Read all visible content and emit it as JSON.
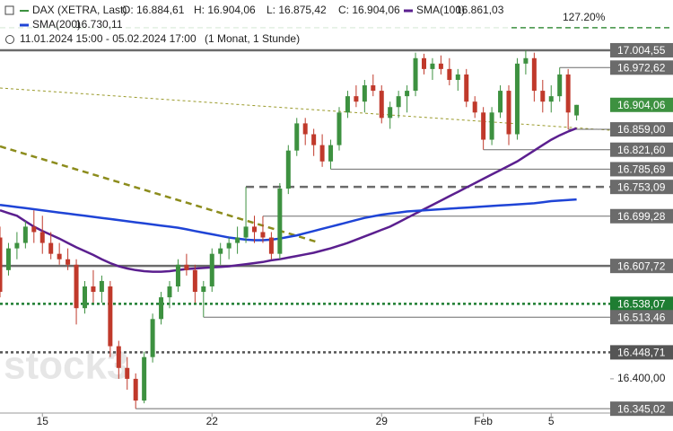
{
  "chart_data": {
    "type": "candlestick",
    "watermark": "stock3",
    "ylim": [
      16304,
      17097
    ],
    "yticks": [
      {
        "value": 16400,
        "label": "16.400,00"
      }
    ],
    "categories": [
      null,
      null,
      null,
      null,
      null,
      "15",
      null,
      null,
      null,
      null,
      null,
      null,
      null,
      null,
      null,
      null,
      null,
      null,
      null,
      null,
      null,
      null,
      null,
      null,
      null,
      "22",
      null,
      null,
      null,
      null,
      null,
      null,
      null,
      null,
      null,
      null,
      null,
      null,
      null,
      null,
      null,
      null,
      null,
      null,
      null,
      "29",
      null,
      null,
      null,
      null,
      null,
      null,
      null,
      null,
      null,
      null,
      null,
      "Feb",
      null,
      null,
      null,
      null,
      null,
      null,
      null,
      "5",
      null,
      null,
      null
    ],
    "series": [
      {
        "name": "DAX (XETRA, Last)",
        "up_color": "#3d9140",
        "down_color": "#c0392b",
        "legend_values": [
          "O: 16.884,61",
          "H: 16.904,06",
          "L: 16.875,42",
          "C: 16.904,06"
        ],
        "values": [
          [
            16660,
            16680,
            16550,
            16560
          ],
          [
            16600,
            16650,
            16590,
            16640
          ],
          [
            16640,
            16670,
            16620,
            16650
          ],
          [
            16650,
            16690,
            16640,
            16680
          ],
          [
            16680,
            16710,
            16650,
            16670
          ],
          [
            16670,
            16700,
            16630,
            16650
          ],
          [
            16650,
            16670,
            16620,
            16630
          ],
          [
            16630,
            16650,
            16610,
            16620
          ],
          [
            16620,
            16640,
            16600,
            16610
          ],
          [
            16610,
            16620,
            16500,
            16530
          ],
          [
            16530,
            16580,
            16520,
            16570
          ],
          [
            16570,
            16600,
            16540,
            16560
          ],
          [
            16560,
            16590,
            16540,
            16580
          ],
          [
            16570,
            16580,
            16440,
            16460
          ],
          [
            16460,
            16470,
            16400,
            16420
          ],
          [
            16420,
            16440,
            16380,
            16400
          ],
          [
            16400,
            16410,
            16345.02,
            16360
          ],
          [
            16360,
            16450,
            16355,
            16440
          ],
          [
            16440,
            16520,
            16430,
            16510
          ],
          [
            16510,
            16560,
            16500,
            16550
          ],
          [
            16550,
            16580,
            16530,
            16570
          ],
          [
            16570,
            16620,
            16560,
            16610
          ],
          [
            16610,
            16630,
            16590,
            16600
          ],
          [
            16600,
            16610,
            16540,
            16560
          ],
          [
            16560,
            16580,
            16513.46,
            16570
          ],
          [
            16570,
            16640,
            16560,
            16630
          ],
          [
            16630,
            16650,
            16610,
            16640
          ],
          [
            16640,
            16660,
            16620,
            16650
          ],
          [
            16650,
            16680,
            16630,
            16660
          ],
          [
            16660,
            16753.09,
            16650,
            16680
          ],
          [
            16680,
            16700,
            16650,
            16670
          ],
          [
            16670,
            16699.28,
            16650,
            16660
          ],
          [
            16660,
            16670,
            16620,
            16630
          ],
          [
            16630,
            16760,
            16620,
            16750
          ],
          [
            16750,
            16830,
            16740,
            16820
          ],
          [
            16820,
            16880,
            16810,
            16870
          ],
          [
            16870,
            16880,
            16830,
            16850
          ],
          [
            16850,
            16860,
            16810,
            16830
          ],
          [
            16830,
            16850,
            16790,
            16800
          ],
          [
            16800,
            16840,
            16785.69,
            16830
          ],
          [
            16830,
            16900,
            16820,
            16890
          ],
          [
            16890,
            16930,
            16880,
            16920
          ],
          [
            16920,
            16940,
            16900,
            16910
          ],
          [
            16910,
            16950,
            16890,
            16940
          ],
          [
            16940,
            16960,
            16920,
            16930
          ],
          [
            16930,
            16940,
            16870,
            16880
          ],
          [
            16880,
            16910,
            16860,
            16900
          ],
          [
            16900,
            16930,
            16880,
            16920
          ],
          [
            16920,
            16940,
            16890,
            16930
          ],
          [
            16930,
            17000,
            16920,
            16990
          ],
          [
            16990,
            16998,
            16960,
            16970
          ],
          [
            16970,
            16990,
            16950,
            16980
          ],
          [
            16980,
            16995,
            16960,
            16970
          ],
          [
            16970,
            16990,
            16940,
            16950
          ],
          [
            16950,
            16970,
            16930,
            16960
          ],
          [
            16960,
            16970,
            16900,
            16910
          ],
          [
            16910,
            16920,
            16880,
            16890
          ],
          [
            16890,
            16900,
            16821.6,
            16840
          ],
          [
            16840,
            16900,
            16830,
            16890
          ],
          [
            16890,
            16940,
            16880,
            16930
          ],
          [
            16930,
            16940,
            16830,
            16850
          ],
          [
            16850,
            16990,
            16840,
            16980
          ],
          [
            16980,
            17004.55,
            16960,
            16990
          ],
          [
            16990,
            17000,
            16910,
            16930
          ],
          [
            16930,
            16950,
            16890,
            16910
          ],
          [
            16910,
            16940,
            16890,
            16920
          ],
          [
            16920,
            16972.62,
            16910,
            16960
          ],
          [
            16960,
            16970,
            16859,
            16890
          ],
          [
            16884.61,
            16904.06,
            16875.42,
            16904.06
          ]
        ]
      }
    ],
    "overlays": [
      {
        "name": "SMA(100)",
        "color": "#5b1f8f",
        "value_label": "16.861,03",
        "values": [
          16710,
          16705,
          16700,
          16690,
          16680,
          16672,
          16665,
          16658,
          16650,
          16642,
          16635,
          16628,
          16620,
          16613,
          16607,
          16603,
          16600,
          16598,
          16597,
          16597,
          16598,
          16600,
          16602,
          16603,
          16604,
          16605,
          16606,
          16607,
          16609,
          16611,
          16613,
          16615,
          16618,
          16620,
          16623,
          16626,
          16629,
          16632,
          16636,
          16640,
          16645,
          16650,
          16656,
          16662,
          16668,
          16674,
          16680,
          16688,
          16696,
          16704,
          16712,
          16720,
          16728,
          16736,
          16744,
          16752,
          16760,
          16768,
          16776,
          16784,
          16792,
          16800,
          16810,
          16820,
          16830,
          16840,
          16848,
          16855,
          16861.03
        ]
      },
      {
        "name": "SMA(200)",
        "color": "#1f44d6",
        "value_label": "16.730,11",
        "values": [
          16720,
          16718,
          16716,
          16714,
          16712,
          16710,
          16708,
          16706,
          16704,
          16702,
          16700,
          16698,
          16696,
          16694,
          16692,
          16690,
          16688,
          16686,
          16684,
          16682,
          16680,
          16678,
          16675,
          16672,
          16669,
          16666,
          16663,
          16660,
          16658,
          16656,
          16655,
          16655,
          16656,
          16658,
          16661,
          16664,
          16668,
          16672,
          16676,
          16680,
          16684,
          16688,
          16692,
          16696,
          16699,
          16702,
          16704,
          16706,
          16708,
          16709,
          16710,
          16711,
          16712,
          16713,
          16714,
          16715,
          16716,
          16717,
          16718,
          16719,
          16720,
          16721,
          16722,
          16723,
          16725,
          16727,
          16728,
          16729,
          16730.11
        ]
      }
    ],
    "period": "11.01.2024 15:00 - 05.02.2024 17:00",
    "period_note": "(1 Monat, 1 Stunde)",
    "fib": {
      "label": "127.20%",
      "value": 17046,
      "color": "#3d9140"
    },
    "last_price": {
      "value": 16904.06,
      "label": "16.904,06",
      "color": "#3d9140"
    },
    "levels": [
      {
        "value": 17004.55,
        "label": "17.004,55",
        "style": "solid-thick",
        "color": "#6b6b6b"
      },
      {
        "value": 16972.62,
        "label": "16.972,62",
        "style": "solid",
        "color": "#6b6b6b"
      },
      {
        "value": 16859,
        "label": "16.859,00",
        "style": "solid",
        "color": "#6b6b6b"
      },
      {
        "value": 16821.6,
        "label": "16.821,60",
        "style": "solid",
        "color": "#6b6b6b"
      },
      {
        "value": 16785.69,
        "label": "16.785,69",
        "style": "solid",
        "color": "#6b6b6b"
      },
      {
        "value": 16753.09,
        "label": "16.753,09",
        "style": "dashed",
        "color": "#6b6b6b"
      },
      {
        "value": 16699.28,
        "label": "16.699,28",
        "style": "solid",
        "color": "#6b6b6b"
      },
      {
        "value": 16607.72,
        "label": "16.607,72",
        "style": "solid-thick",
        "color": "#6b6b6b"
      },
      {
        "value": 16538.07,
        "label": "16.538,07",
        "style": "dotted",
        "color": "#1e7d32"
      },
      {
        "value": 16513.46,
        "label": "16.513,46",
        "style": "solid",
        "color": "#6b6b6b"
      },
      {
        "value": 16448.71,
        "label": "16.448,71",
        "style": "dotted",
        "color": "#555555"
      },
      {
        "value": 16345.02,
        "label": "16.345,02",
        "style": "solid",
        "color": "#6b6b6b"
      }
    ]
  }
}
